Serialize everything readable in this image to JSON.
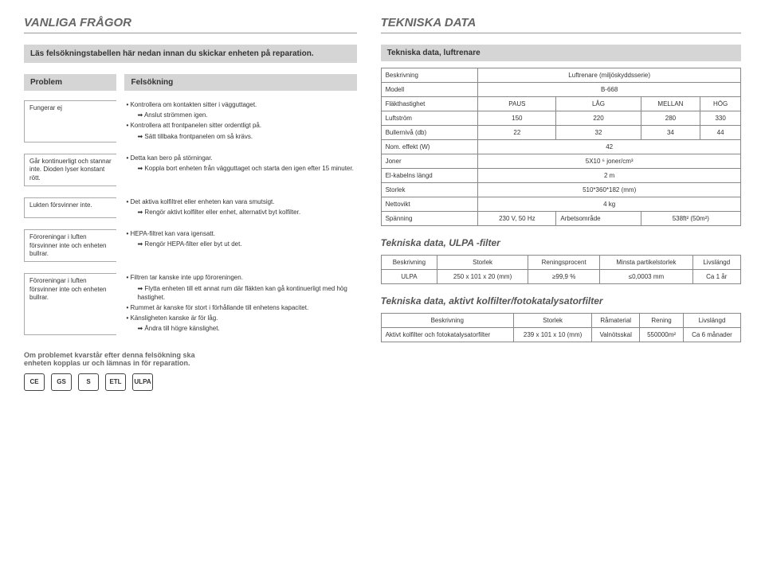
{
  "left_title": "VANLIGA FRÅGOR",
  "right_title": "TEKNISKA DATA",
  "intro_bar": "Läs felsökningstabellen här nedan innan du skickar enheten på reparation.",
  "th_problem": "Problem",
  "th_solution": "Felsökning",
  "t1p": "Fungerar ej",
  "t1s1": "Kontrollera om kontakten sitter i vägguttaget.",
  "t1s1a": "Anslut strömmen igen.",
  "t1s2": "Kontrollera att frontpanelen sitter ordentligt på.",
  "t1s2a": "Sätt tillbaka frontpanelen om så krävs.",
  "t2p": "Går kontinuerligt och stannar inte. Dioden lyser konstant rött.",
  "t2s1": "Detta kan bero på störningar.",
  "t2s1a": "Koppla bort enheten från vägguttaget och starta den igen efter 15 minuter.",
  "t3p": "Lukten försvinner inte.",
  "t3s1": "Det aktiva kolfiltret eller enheten kan vara smutsigt.",
  "t3s1a": "Rengör aktivt kolfilter eller enhet, alternativt byt kolfilter.",
  "t4p": "Föroreningar i luften försvinner inte och enheten bullrar.",
  "t4s1": "HEPA-filtret kan vara igensatt.",
  "t4s1a": "Rengör HEPA-filter eller byt ut det.",
  "t5p": "Föroreningar i luften försvinner inte och enheten bullrar.",
  "t5s1": "Filtren tar kanske inte upp föroreningen.",
  "t5s1a": "Flytta enheten till ett annat rum där fläkten kan gå kontinuerligt med hög hastighet.",
  "t5s2": "Rummet är kanske för stort i förhållande till enhetens kapacitet.",
  "t5s3": "Känsligheten kanske är för låg.",
  "t5s3a": "Ändra till högre känslighet.",
  "footer_note": "Om problemet kvarstår efter denna felsökning ska enheten kopplas ur och lämnas in för reparation.",
  "spec_header_title": "Tekniska data, luftrenare",
  "r1c1": "Beskrivning",
  "r1c2": "Luftrenare (miljöskyddsserie)",
  "r2c1": "Modell",
  "r2c2": "B-668",
  "r3c1": "Fläkthastighet",
  "r3c2": "PAUS",
  "r3c3": "LÅG",
  "r3c4": "MELLAN",
  "r3c5": "HÖG",
  "r4c1": "Luftström",
  "r4c2": "150",
  "r4c3": "220",
  "r4c4": "280",
  "r4c5": "330",
  "r5c1": "Bullernivå (db)",
  "r5c2": "22",
  "r5c3": "32",
  "r5c4": "34",
  "r5c5": "44",
  "r6c1": "Nom. effekt (W)",
  "r6c2": "42",
  "r7c1": "Joner",
  "r7c2": "5X10 ⁶ joner/cm³",
  "r8c1": "El-kabelns längd",
  "r8c2": "2 m",
  "r9c1": "Storlek",
  "r9c2": "510*360*182 (mm)",
  "r10c1": "Nettovikt",
  "r10c2": "4 kg",
  "r11c1": "Spänning",
  "r11c2": "230 V, 50 Hz",
  "r11c3": "Arbetsområde",
  "r11c4": "538ft² (50m²)",
  "ulpa_title": "Tekniska data, ULPA -filter",
  "uh1": "Beskrivning",
  "uh2": "Storlek",
  "uh3": "Reningsprocent",
  "uh4": "Minsta partikelstorlek",
  "uh5": "Livslängd",
  "ur1": "ULPA",
  "ur2": "250 x 101 x 20 (mm)",
  "ur3": "≥99,9 %",
  "ur4": "≤0,0003 mm",
  "ur5": "Ca 1 år",
  "carbon_title": "Tekniska data, aktivt kolfilter/fotokatalysatorfilter",
  "ch1": "Beskrivning",
  "ch2": "Storlek",
  "ch3": "Råmaterial",
  "ch4": "Rening",
  "ch5": "Livslängd",
  "cr1": "Aktivt kolfilter och fotokatalysatorfilter",
  "cr2": "239 x 101 x 10 (mm)",
  "cr3": "Valnötsskal",
  "cr4": "550000m²",
  "cr5": "Ca 6 månader",
  "cert1": "CE",
  "cert2": "GS",
  "cert3": "S",
  "cert4": "ETL",
  "cert5": "ULPA"
}
